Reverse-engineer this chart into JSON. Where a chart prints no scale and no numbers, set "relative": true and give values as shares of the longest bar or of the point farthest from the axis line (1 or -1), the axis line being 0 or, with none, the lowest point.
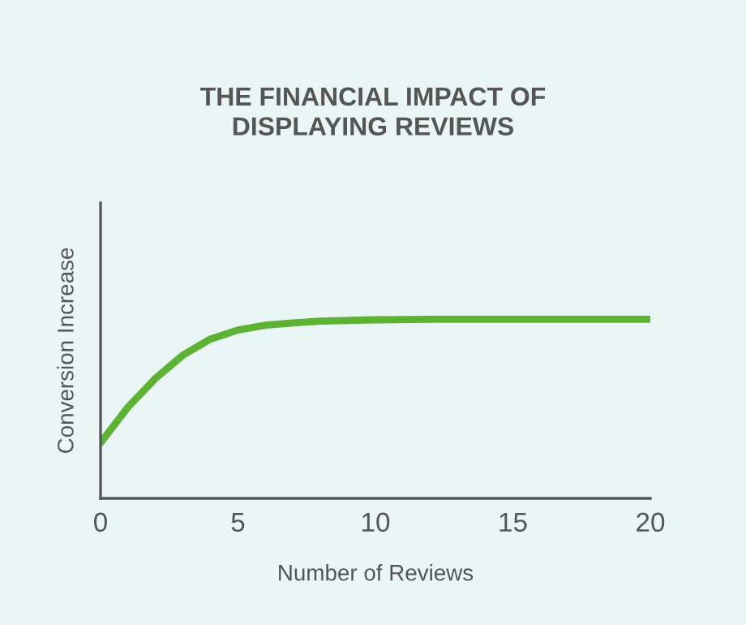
{
  "chart_data": {
    "type": "line",
    "title": "THE FINANCIAL IMPACT OF\nDISPLAYING REVIEWS",
    "xlabel": "Number of Reviews",
    "ylabel": "Conversion Increase",
    "relative": true,
    "x": [
      0,
      1,
      2,
      3,
      4,
      5,
      6,
      7,
      8,
      10,
      12,
      15,
      20
    ],
    "series": [
      {
        "color": "#5db234",
        "values": [
          0.31,
          0.51,
          0.67,
          0.8,
          0.89,
          0.94,
          0.967,
          0.98,
          0.99,
          0.997,
          1,
          1,
          1
        ]
      }
    ],
    "xlim": [
      0,
      20
    ],
    "xticks": [
      0,
      5,
      10,
      15,
      20
    ],
    "grid": false,
    "marker": "none",
    "line_style": "solid"
  }
}
